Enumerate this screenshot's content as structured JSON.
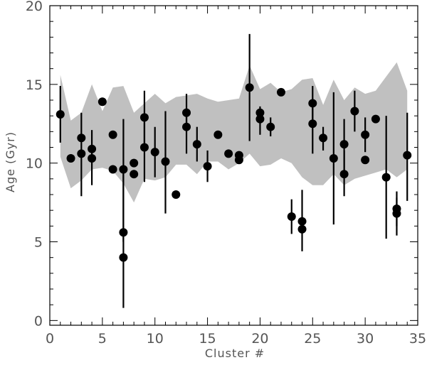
{
  "chart_data": {
    "type": "scatter",
    "xlabel": "Cluster #",
    "ylabel": "Age (Gyr)",
    "xlim": [
      0,
      35
    ],
    "ylim": [
      -0.3,
      20
    ],
    "xticks": [
      0,
      5,
      10,
      15,
      20,
      25,
      30,
      35
    ],
    "yticks": [
      0,
      5,
      10,
      15,
      20
    ],
    "grid": false,
    "colors": {
      "band": "#c0c0c0",
      "points": "#000000",
      "axes": "#000000",
      "text": "#555555"
    },
    "band": {
      "x": [
        1,
        2,
        3,
        4,
        5,
        6,
        7,
        8,
        9,
        10,
        11,
        12,
        13,
        14,
        15,
        16,
        17,
        18,
        19,
        20,
        21,
        22,
        23,
        24,
        25,
        26,
        27,
        28,
        29,
        30,
        31,
        32,
        33,
        34
      ],
      "upper": [
        15.6,
        12.7,
        13.2,
        15.0,
        13.3,
        14.8,
        14.9,
        13.2,
        13.8,
        14.4,
        13.8,
        14.2,
        14.3,
        14.4,
        14.1,
        13.9,
        14.0,
        14.1,
        16.2,
        14.7,
        15.1,
        14.5,
        14.7,
        15.3,
        15.4,
        13.7,
        15.3,
        14.0,
        14.8,
        14.4,
        14.6,
        15.5,
        16.4,
        14.6
      ],
      "lower": [
        10.4,
        8.4,
        8.9,
        9.6,
        9.7,
        9.5,
        8.7,
        7.5,
        9.0,
        8.9,
        9.1,
        9.9,
        9.9,
        9.3,
        10.1,
        10.1,
        9.6,
        10.0,
        10.6,
        9.8,
        9.9,
        10.3,
        10.0,
        9.1,
        8.6,
        8.6,
        9.3,
        8.6,
        9.0,
        9.2,
        9.4,
        9.6,
        9.1,
        9.6
      ]
    },
    "points": [
      {
        "x": 1,
        "y": 13.1,
        "lo": 11.3,
        "hi": 14.9
      },
      {
        "x": 2,
        "y": 10.3
      },
      {
        "x": 3,
        "y": 11.6,
        "lo": 7.9,
        "hi": 13.2
      },
      {
        "x": 3,
        "y": 10.6
      },
      {
        "x": 4,
        "y": 10.9,
        "lo": 8.6,
        "hi": 12.1
      },
      {
        "x": 4,
        "y": 10.3
      },
      {
        "x": 5,
        "y": 13.9
      },
      {
        "x": 6,
        "y": 11.8
      },
      {
        "x": 6,
        "y": 9.6
      },
      {
        "x": 7,
        "y": 9.6,
        "lo": 5.0,
        "hi": 12.8
      },
      {
        "x": 7,
        "y": 5.6
      },
      {
        "x": 7,
        "y": 4.0,
        "lo": 0.8,
        "hi": 9.5
      },
      {
        "x": 8,
        "y": 10.0
      },
      {
        "x": 8,
        "y": 9.3
      },
      {
        "x": 9,
        "y": 12.9,
        "lo": 10.8,
        "hi": 14.6
      },
      {
        "x": 9,
        "y": 11.0,
        "lo": 8.8,
        "hi": 13.0
      },
      {
        "x": 10,
        "y": 10.7,
        "lo": 9.1,
        "hi": 12.3
      },
      {
        "x": 11,
        "y": 10.1,
        "lo": 6.8,
        "hi": 13.3
      },
      {
        "x": 12,
        "y": 8.0
      },
      {
        "x": 13,
        "y": 13.2,
        "lo": 12.1,
        "hi": 14.4
      },
      {
        "x": 13,
        "y": 12.3,
        "lo": 10.6,
        "hi": 13.5
      },
      {
        "x": 14,
        "y": 11.2,
        "lo": 10.1,
        "hi": 12.3
      },
      {
        "x": 15,
        "y": 9.8,
        "lo": 8.8,
        "hi": 10.8
      },
      {
        "x": 16,
        "y": 11.8
      },
      {
        "x": 17,
        "y": 10.6
      },
      {
        "x": 18,
        "y": 10.5
      },
      {
        "x": 18,
        "y": 10.2
      },
      {
        "x": 19,
        "y": 14.8,
        "lo": 11.4,
        "hi": 18.2
      },
      {
        "x": 20,
        "y": 13.2
      },
      {
        "x": 20,
        "y": 12.8,
        "lo": 11.8,
        "hi": 13.6
      },
      {
        "x": 21,
        "y": 12.3,
        "lo": 11.7,
        "hi": 12.9
      },
      {
        "x": 22,
        "y": 14.5
      },
      {
        "x": 23,
        "y": 6.6,
        "lo": 5.5,
        "hi": 7.7
      },
      {
        "x": 24,
        "y": 6.3,
        "lo": 4.4,
        "hi": 8.3
      },
      {
        "x": 24,
        "y": 5.8
      },
      {
        "x": 25,
        "y": 13.8,
        "lo": 12.5,
        "hi": 14.9
      },
      {
        "x": 25,
        "y": 12.5,
        "lo": 10.6,
        "hi": 14.0
      },
      {
        "x": 26,
        "y": 11.6,
        "lo": 10.8,
        "hi": 12.3
      },
      {
        "x": 27,
        "y": 10.3,
        "lo": 6.1,
        "hi": 14.5
      },
      {
        "x": 28,
        "y": 11.2,
        "lo": 9.4,
        "hi": 12.8
      },
      {
        "x": 28,
        "y": 9.3,
        "lo": 7.9,
        "hi": 10.8
      },
      {
        "x": 29,
        "y": 13.3,
        "lo": 12.0,
        "hi": 14.6
      },
      {
        "x": 30,
        "y": 11.8,
        "lo": 10.7,
        "hi": 12.9
      },
      {
        "x": 30,
        "y": 10.2
      },
      {
        "x": 31,
        "y": 12.8
      },
      {
        "x": 32,
        "y": 9.1,
        "lo": 5.2,
        "hi": 13.0
      },
      {
        "x": 33,
        "y": 7.1,
        "lo": 6.0,
        "hi": 8.2
      },
      {
        "x": 33,
        "y": 6.8,
        "lo": 5.4,
        "hi": 7.8
      },
      {
        "x": 34,
        "y": 10.5,
        "lo": 7.6,
        "hi": 13.2
      }
    ]
  }
}
